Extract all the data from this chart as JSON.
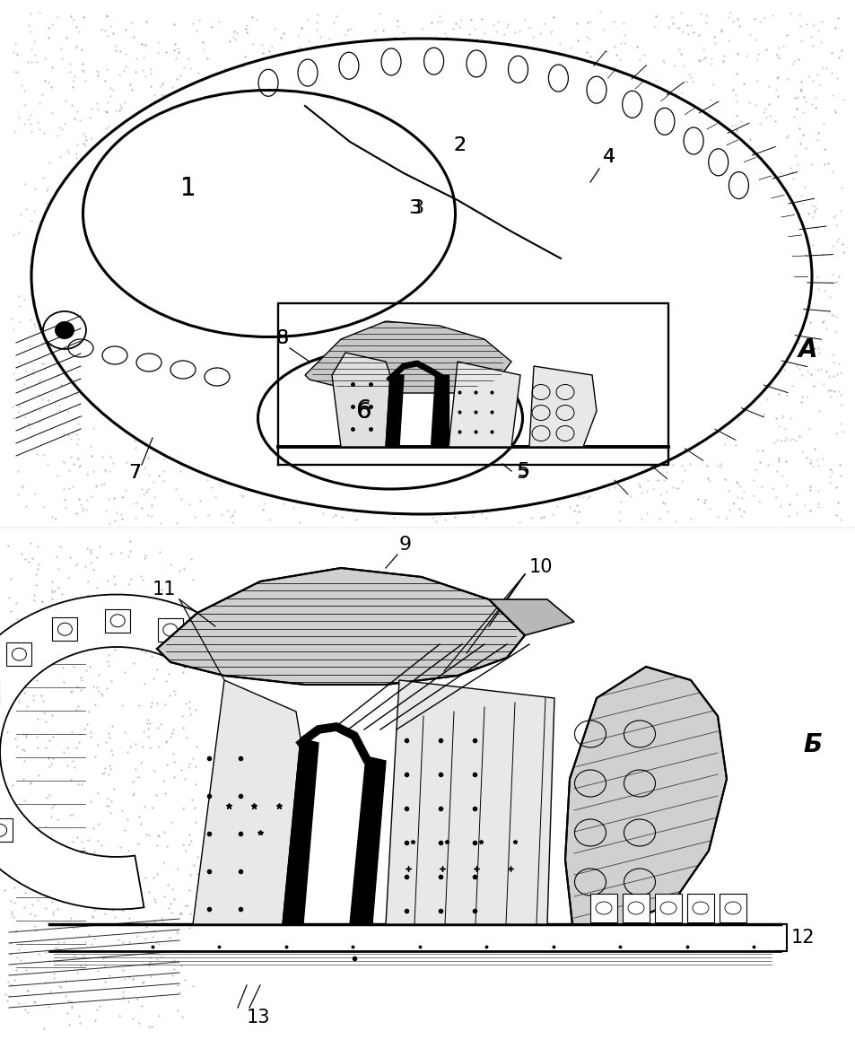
{
  "bg_color": "#ffffff",
  "label_A": "A",
  "label_B": "Б",
  "dot_color": "#888888",
  "line_color": "#000000"
}
